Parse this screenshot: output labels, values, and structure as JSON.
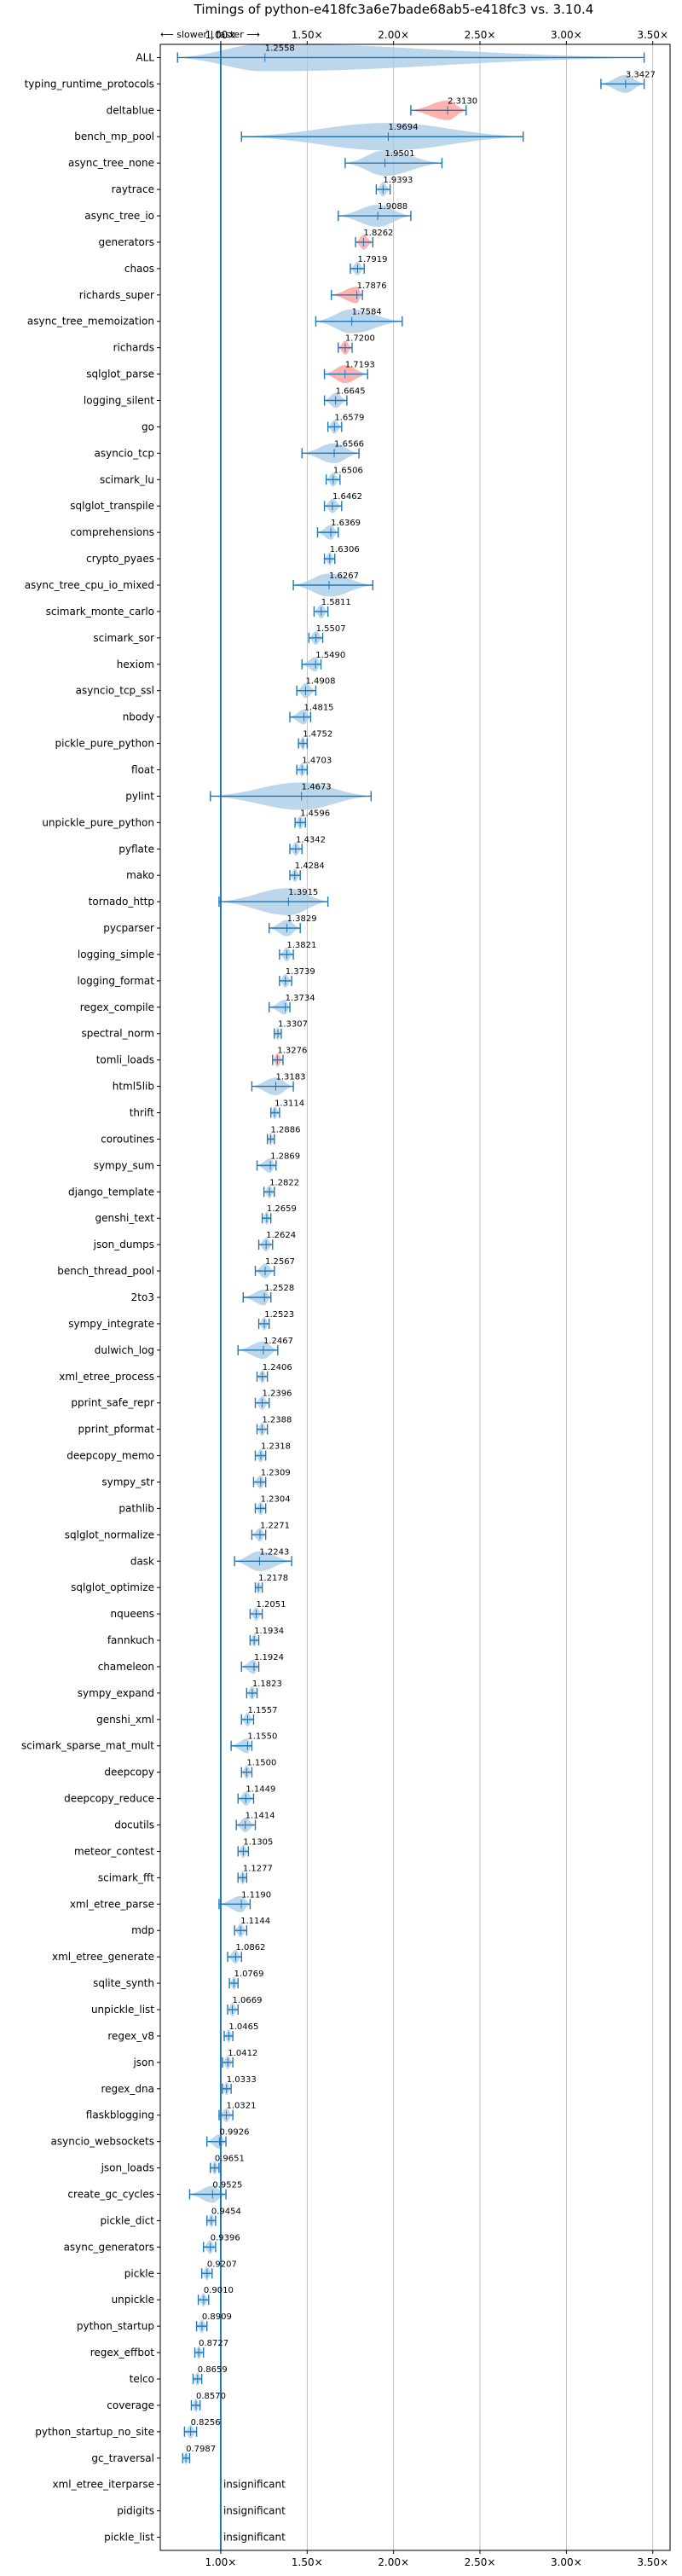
{
  "chart_data": {
    "type": "violin",
    "title": "Timings of python-e418fc3a6e7bade68ab5-e418fc3 vs. 3.10.4",
    "direction_note": "⟵ slower | faster ⟶",
    "xlabel": "",
    "ylabel": "",
    "xlim": [
      0.65,
      3.6
    ],
    "x_ticks": [
      1.0,
      1.5,
      2.0,
      2.5,
      3.0,
      3.5
    ],
    "x_tick_labels": [
      "1.00×",
      "1.50×",
      "2.00×",
      "2.50×",
      "3.00×",
      "3.50×"
    ],
    "reference_line": 1.0,
    "grid": true,
    "insignificant_label": "insignificant",
    "colors": {
      "normal": "#1f77b4",
      "regression": "#ff9896",
      "violin_fill": "#a6c8e6"
    },
    "benchmarks": [
      {
        "name": "ALL",
        "label": "1.2558",
        "v": 1.2558,
        "lo": 0.75,
        "hi": 3.45,
        "status": "normal"
      },
      {
        "name": "typing_runtime_protocols",
        "label": "3.3427",
        "v": 3.3427,
        "lo": 3.2,
        "hi": 3.45,
        "status": "normal"
      },
      {
        "name": "deltablue",
        "label": "2.3130",
        "v": 2.313,
        "lo": 2.1,
        "hi": 2.42,
        "status": "regression"
      },
      {
        "name": "bench_mp_pool",
        "label": "1.9694",
        "v": 1.9694,
        "lo": 1.12,
        "hi": 2.75,
        "status": "normal"
      },
      {
        "name": "async_tree_none",
        "label": "1.9501",
        "v": 1.9501,
        "lo": 1.72,
        "hi": 2.28,
        "status": "normal"
      },
      {
        "name": "raytrace",
        "label": "1.9393",
        "v": 1.9393,
        "lo": 1.9,
        "hi": 1.98,
        "status": "normal"
      },
      {
        "name": "async_tree_io",
        "label": "1.9088",
        "v": 1.9088,
        "lo": 1.68,
        "hi": 2.1,
        "status": "normal"
      },
      {
        "name": "generators",
        "label": "1.8262",
        "v": 1.8262,
        "lo": 1.78,
        "hi": 1.88,
        "status": "regression"
      },
      {
        "name": "chaos",
        "label": "1.7919",
        "v": 1.7919,
        "lo": 1.75,
        "hi": 1.83,
        "status": "normal"
      },
      {
        "name": "richards_super",
        "label": "1.7876",
        "v": 1.7876,
        "lo": 1.64,
        "hi": 1.82,
        "status": "regression"
      },
      {
        "name": "async_tree_memoization",
        "label": "1.7584",
        "v": 1.7584,
        "lo": 1.55,
        "hi": 2.05,
        "status": "normal"
      },
      {
        "name": "richards",
        "label": "1.7200",
        "v": 1.72,
        "lo": 1.68,
        "hi": 1.76,
        "status": "regression"
      },
      {
        "name": "sqlglot_parse",
        "label": "1.7193",
        "v": 1.7193,
        "lo": 1.6,
        "hi": 1.85,
        "status": "regression"
      },
      {
        "name": "logging_silent",
        "label": "1.6645",
        "v": 1.6645,
        "lo": 1.6,
        "hi": 1.73,
        "status": "normal"
      },
      {
        "name": "go",
        "label": "1.6579",
        "v": 1.6579,
        "lo": 1.62,
        "hi": 1.7,
        "status": "normal"
      },
      {
        "name": "asyncio_tcp",
        "label": "1.6566",
        "v": 1.6566,
        "lo": 1.47,
        "hi": 1.8,
        "status": "normal"
      },
      {
        "name": "scimark_lu",
        "label": "1.6506",
        "v": 1.6506,
        "lo": 1.61,
        "hi": 1.69,
        "status": "normal"
      },
      {
        "name": "sqlglot_transpile",
        "label": "1.6462",
        "v": 1.6462,
        "lo": 1.6,
        "hi": 1.7,
        "status": "normal"
      },
      {
        "name": "comprehensions",
        "label": "1.6369",
        "v": 1.6369,
        "lo": 1.56,
        "hi": 1.68,
        "status": "normal"
      },
      {
        "name": "crypto_pyaes",
        "label": "1.6306",
        "v": 1.6306,
        "lo": 1.6,
        "hi": 1.66,
        "status": "normal"
      },
      {
        "name": "async_tree_cpu_io_mixed",
        "label": "1.6267",
        "v": 1.6267,
        "lo": 1.42,
        "hi": 1.88,
        "status": "normal"
      },
      {
        "name": "scimark_monte_carlo",
        "label": "1.5811",
        "v": 1.5811,
        "lo": 1.54,
        "hi": 1.62,
        "status": "normal"
      },
      {
        "name": "scimark_sor",
        "label": "1.5507",
        "v": 1.5507,
        "lo": 1.51,
        "hi": 1.59,
        "status": "normal"
      },
      {
        "name": "hexiom",
        "label": "1.5490",
        "v": 1.549,
        "lo": 1.47,
        "hi": 1.58,
        "status": "normal"
      },
      {
        "name": "asyncio_tcp_ssl",
        "label": "1.4908",
        "v": 1.4908,
        "lo": 1.44,
        "hi": 1.55,
        "status": "normal"
      },
      {
        "name": "nbody",
        "label": "1.4815",
        "v": 1.4815,
        "lo": 1.4,
        "hi": 1.52,
        "status": "normal"
      },
      {
        "name": "pickle_pure_python",
        "label": "1.4752",
        "v": 1.4752,
        "lo": 1.45,
        "hi": 1.5,
        "status": "normal"
      },
      {
        "name": "float",
        "label": "1.4703",
        "v": 1.4703,
        "lo": 1.44,
        "hi": 1.5,
        "status": "normal"
      },
      {
        "name": "pylint",
        "label": "1.4673",
        "v": 1.4673,
        "lo": 0.94,
        "hi": 1.87,
        "status": "normal"
      },
      {
        "name": "unpickle_pure_python",
        "label": "1.4596",
        "v": 1.4596,
        "lo": 1.43,
        "hi": 1.49,
        "status": "normal"
      },
      {
        "name": "pyflate",
        "label": "1.4342",
        "v": 1.4342,
        "lo": 1.4,
        "hi": 1.47,
        "status": "normal"
      },
      {
        "name": "mako",
        "label": "1.4284",
        "v": 1.4284,
        "lo": 1.4,
        "hi": 1.46,
        "status": "normal"
      },
      {
        "name": "tornado_http",
        "label": "1.3915",
        "v": 1.3915,
        "lo": 0.99,
        "hi": 1.62,
        "status": "normal"
      },
      {
        "name": "pycparser",
        "label": "1.3829",
        "v": 1.3829,
        "lo": 1.28,
        "hi": 1.46,
        "status": "normal"
      },
      {
        "name": "logging_simple",
        "label": "1.3821",
        "v": 1.3821,
        "lo": 1.34,
        "hi": 1.42,
        "status": "normal"
      },
      {
        "name": "logging_format",
        "label": "1.3739",
        "v": 1.3739,
        "lo": 1.34,
        "hi": 1.41,
        "status": "normal"
      },
      {
        "name": "regex_compile",
        "label": "1.3734",
        "v": 1.3734,
        "lo": 1.28,
        "hi": 1.4,
        "status": "normal"
      },
      {
        "name": "spectral_norm",
        "label": "1.3307",
        "v": 1.3307,
        "lo": 1.31,
        "hi": 1.35,
        "status": "normal"
      },
      {
        "name": "tomli_loads",
        "label": "1.3276",
        "v": 1.3276,
        "lo": 1.3,
        "hi": 1.36,
        "status": "regression"
      },
      {
        "name": "html5lib",
        "label": "1.3183",
        "v": 1.3183,
        "lo": 1.18,
        "hi": 1.42,
        "status": "normal"
      },
      {
        "name": "thrift",
        "label": "1.3114",
        "v": 1.3114,
        "lo": 1.29,
        "hi": 1.34,
        "status": "normal"
      },
      {
        "name": "coroutines",
        "label": "1.2886",
        "v": 1.2886,
        "lo": 1.27,
        "hi": 1.31,
        "status": "normal"
      },
      {
        "name": "sympy_sum",
        "label": "1.2869",
        "v": 1.2869,
        "lo": 1.21,
        "hi": 1.32,
        "status": "normal"
      },
      {
        "name": "django_template",
        "label": "1.2822",
        "v": 1.2822,
        "lo": 1.25,
        "hi": 1.31,
        "status": "normal"
      },
      {
        "name": "genshi_text",
        "label": "1.2659",
        "v": 1.2659,
        "lo": 1.24,
        "hi": 1.29,
        "status": "normal"
      },
      {
        "name": "json_dumps",
        "label": "1.2624",
        "v": 1.2624,
        "lo": 1.22,
        "hi": 1.3,
        "status": "normal"
      },
      {
        "name": "bench_thread_pool",
        "label": "1.2567",
        "v": 1.2567,
        "lo": 1.2,
        "hi": 1.31,
        "status": "normal"
      },
      {
        "name": "2to3",
        "label": "1.2528",
        "v": 1.2528,
        "lo": 1.13,
        "hi": 1.29,
        "status": "normal"
      },
      {
        "name": "sympy_integrate",
        "label": "1.2523",
        "v": 1.2523,
        "lo": 1.22,
        "hi": 1.28,
        "status": "normal"
      },
      {
        "name": "dulwich_log",
        "label": "1.2467",
        "v": 1.2467,
        "lo": 1.1,
        "hi": 1.33,
        "status": "normal"
      },
      {
        "name": "xml_etree_process",
        "label": "1.2406",
        "v": 1.2406,
        "lo": 1.21,
        "hi": 1.27,
        "status": "normal"
      },
      {
        "name": "pprint_safe_repr",
        "label": "1.2396",
        "v": 1.2396,
        "lo": 1.2,
        "hi": 1.28,
        "status": "normal"
      },
      {
        "name": "pprint_pformat",
        "label": "1.2388",
        "v": 1.2388,
        "lo": 1.21,
        "hi": 1.27,
        "status": "normal"
      },
      {
        "name": "deepcopy_memo",
        "label": "1.2318",
        "v": 1.2318,
        "lo": 1.2,
        "hi": 1.26,
        "status": "normal"
      },
      {
        "name": "sympy_str",
        "label": "1.2309",
        "v": 1.2309,
        "lo": 1.19,
        "hi": 1.26,
        "status": "normal"
      },
      {
        "name": "pathlib",
        "label": "1.2304",
        "v": 1.2304,
        "lo": 1.2,
        "hi": 1.26,
        "status": "normal"
      },
      {
        "name": "sqlglot_normalize",
        "label": "1.2271",
        "v": 1.2271,
        "lo": 1.18,
        "hi": 1.26,
        "status": "normal"
      },
      {
        "name": "dask",
        "label": "1.2243",
        "v": 1.2243,
        "lo": 1.08,
        "hi": 1.41,
        "status": "normal"
      },
      {
        "name": "sqlglot_optimize",
        "label": "1.2178",
        "v": 1.2178,
        "lo": 1.2,
        "hi": 1.24,
        "status": "normal"
      },
      {
        "name": "nqueens",
        "label": "1.2051",
        "v": 1.2051,
        "lo": 1.17,
        "hi": 1.24,
        "status": "normal"
      },
      {
        "name": "fannkuch",
        "label": "1.1934",
        "v": 1.1934,
        "lo": 1.17,
        "hi": 1.22,
        "status": "normal"
      },
      {
        "name": "chameleon",
        "label": "1.1924",
        "v": 1.1924,
        "lo": 1.12,
        "hi": 1.22,
        "status": "normal"
      },
      {
        "name": "sympy_expand",
        "label": "1.1823",
        "v": 1.1823,
        "lo": 1.15,
        "hi": 1.21,
        "status": "normal"
      },
      {
        "name": "genshi_xml",
        "label": "1.1557",
        "v": 1.1557,
        "lo": 1.12,
        "hi": 1.19,
        "status": "normal"
      },
      {
        "name": "scimark_sparse_mat_mult",
        "label": "1.1550",
        "v": 1.155,
        "lo": 1.06,
        "hi": 1.18,
        "status": "normal"
      },
      {
        "name": "deepcopy",
        "label": "1.1500",
        "v": 1.15,
        "lo": 1.12,
        "hi": 1.18,
        "status": "normal"
      },
      {
        "name": "deepcopy_reduce",
        "label": "1.1449",
        "v": 1.1449,
        "lo": 1.1,
        "hi": 1.19,
        "status": "normal"
      },
      {
        "name": "docutils",
        "label": "1.1414",
        "v": 1.1414,
        "lo": 1.09,
        "hi": 1.2,
        "status": "normal"
      },
      {
        "name": "meteor_contest",
        "label": "1.1305",
        "v": 1.1305,
        "lo": 1.1,
        "hi": 1.16,
        "status": "normal"
      },
      {
        "name": "scimark_fft",
        "label": "1.1277",
        "v": 1.1277,
        "lo": 1.1,
        "hi": 1.15,
        "status": "normal"
      },
      {
        "name": "xml_etree_parse",
        "label": "1.1190",
        "v": 1.119,
        "lo": 0.99,
        "hi": 1.17,
        "status": "normal"
      },
      {
        "name": "mdp",
        "label": "1.1144",
        "v": 1.1144,
        "lo": 1.08,
        "hi": 1.15,
        "status": "normal"
      },
      {
        "name": "xml_etree_generate",
        "label": "1.0862",
        "v": 1.0862,
        "lo": 1.04,
        "hi": 1.12,
        "status": "normal"
      },
      {
        "name": "sqlite_synth",
        "label": "1.0769",
        "v": 1.0769,
        "lo": 1.05,
        "hi": 1.1,
        "status": "normal"
      },
      {
        "name": "unpickle_list",
        "label": "1.0669",
        "v": 1.0669,
        "lo": 1.04,
        "hi": 1.1,
        "status": "normal"
      },
      {
        "name": "regex_v8",
        "label": "1.0465",
        "v": 1.0465,
        "lo": 1.02,
        "hi": 1.07,
        "status": "normal"
      },
      {
        "name": "json",
        "label": "1.0412",
        "v": 1.0412,
        "lo": 1.01,
        "hi": 1.07,
        "status": "normal"
      },
      {
        "name": "regex_dna",
        "label": "1.0333",
        "v": 1.0333,
        "lo": 1.01,
        "hi": 1.06,
        "status": "normal"
      },
      {
        "name": "flaskblogging",
        "label": "1.0321",
        "v": 1.0321,
        "lo": 0.99,
        "hi": 1.07,
        "status": "normal"
      },
      {
        "name": "asyncio_websockets",
        "label": "0.9926",
        "v": 0.9926,
        "lo": 0.92,
        "hi": 1.03,
        "status": "normal"
      },
      {
        "name": "json_loads",
        "label": "0.9651",
        "v": 0.9651,
        "lo": 0.94,
        "hi": 0.99,
        "status": "normal"
      },
      {
        "name": "create_gc_cycles",
        "label": "0.9525",
        "v": 0.9525,
        "lo": 0.82,
        "hi": 1.03,
        "status": "normal"
      },
      {
        "name": "pickle_dict",
        "label": "0.9454",
        "v": 0.9454,
        "lo": 0.92,
        "hi": 0.97,
        "status": "normal"
      },
      {
        "name": "async_generators",
        "label": "0.9396",
        "v": 0.9396,
        "lo": 0.9,
        "hi": 0.97,
        "status": "normal"
      },
      {
        "name": "pickle",
        "label": "0.9207",
        "v": 0.9207,
        "lo": 0.89,
        "hi": 0.95,
        "status": "normal"
      },
      {
        "name": "unpickle",
        "label": "0.9010",
        "v": 0.901,
        "lo": 0.87,
        "hi": 0.93,
        "status": "normal"
      },
      {
        "name": "python_startup",
        "label": "0.8909",
        "v": 0.8909,
        "lo": 0.86,
        "hi": 0.92,
        "status": "normal"
      },
      {
        "name": "regex_effbot",
        "label": "0.8727",
        "v": 0.8727,
        "lo": 0.85,
        "hi": 0.9,
        "status": "normal"
      },
      {
        "name": "telco",
        "label": "0.8659",
        "v": 0.8659,
        "lo": 0.84,
        "hi": 0.89,
        "status": "normal"
      },
      {
        "name": "coverage",
        "label": "0.8570",
        "v": 0.857,
        "lo": 0.83,
        "hi": 0.88,
        "status": "normal"
      },
      {
        "name": "python_startup_no_site",
        "label": "0.8256",
        "v": 0.8256,
        "lo": 0.79,
        "hi": 0.86,
        "status": "normal"
      },
      {
        "name": "gc_traversal",
        "label": "0.7987",
        "v": 0.7987,
        "lo": 0.78,
        "hi": 0.82,
        "status": "normal"
      },
      {
        "name": "xml_etree_iterparse",
        "label": "",
        "v": null,
        "lo": null,
        "hi": null,
        "status": "insignificant"
      },
      {
        "name": "pidigits",
        "label": "",
        "v": null,
        "lo": null,
        "hi": null,
        "status": "insignificant"
      },
      {
        "name": "pickle_list",
        "label": "",
        "v": null,
        "lo": null,
        "hi": null,
        "status": "insignificant"
      }
    ]
  }
}
